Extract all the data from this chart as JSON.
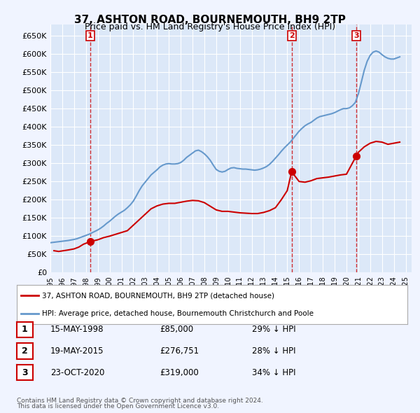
{
  "title": "37, ASHTON ROAD, BOURNEMOUTH, BH9 2TP",
  "subtitle": "Price paid vs. HM Land Registry's House Price Index (HPI)",
  "background_color": "#f0f4ff",
  "plot_bg_color": "#dce8f8",
  "grid_color": "#ffffff",
  "ylim": [
    0,
    680000
  ],
  "yticks": [
    0,
    50000,
    100000,
    150000,
    200000,
    250000,
    300000,
    350000,
    400000,
    450000,
    500000,
    550000,
    600000,
    650000
  ],
  "ytick_labels": [
    "£0",
    "£50K",
    "£100K",
    "£150K",
    "£200K",
    "£250K",
    "£300K",
    "£350K",
    "£400K",
    "£450K",
    "£500K",
    "£550K",
    "£600K",
    "£650K"
  ],
  "xlim_start": 1995.0,
  "xlim_end": 2025.5,
  "purchases": [
    {
      "date_num": 1998.37,
      "price": 85000,
      "label": "1"
    },
    {
      "date_num": 2015.37,
      "price": 276751,
      "label": "2"
    },
    {
      "date_num": 2020.81,
      "price": 319000,
      "label": "3"
    }
  ],
  "purchase_line_dates": [
    1998.37,
    2015.37,
    2020.81
  ],
  "legend_line1": "37, ASHTON ROAD, BOURNEMOUTH, BH9 2TP (detached house)",
  "legend_line2": "HPI: Average price, detached house, Bournemouth Christchurch and Poole",
  "table_rows": [
    {
      "num": "1",
      "date": "15-MAY-1998",
      "price": "£85,000",
      "hpi": "29% ↓ HPI"
    },
    {
      "num": "2",
      "date": "19-MAY-2015",
      "price": "£276,751",
      "hpi": "28% ↓ HPI"
    },
    {
      "num": "3",
      "date": "23-OCT-2020",
      "price": "£319,000",
      "hpi": "34% ↓ HPI"
    }
  ],
  "footnote1": "Contains HM Land Registry data © Crown copyright and database right 2024.",
  "footnote2": "This data is licensed under the Open Government Licence v3.0.",
  "red_line_color": "#cc0000",
  "blue_line_color": "#6699cc",
  "purchase_marker_color": "#cc0000",
  "hpi_data_x": [
    1995.0,
    1995.25,
    1995.5,
    1995.75,
    1996.0,
    1996.25,
    1996.5,
    1996.75,
    1997.0,
    1997.25,
    1997.5,
    1997.75,
    1998.0,
    1998.25,
    1998.5,
    1998.75,
    1999.0,
    1999.25,
    1999.5,
    1999.75,
    2000.0,
    2000.25,
    2000.5,
    2000.75,
    2001.0,
    2001.25,
    2001.5,
    2001.75,
    2002.0,
    2002.25,
    2002.5,
    2002.75,
    2003.0,
    2003.25,
    2003.5,
    2003.75,
    2004.0,
    2004.25,
    2004.5,
    2004.75,
    2005.0,
    2005.25,
    2005.5,
    2005.75,
    2006.0,
    2006.25,
    2006.5,
    2006.75,
    2007.0,
    2007.25,
    2007.5,
    2007.75,
    2008.0,
    2008.25,
    2008.5,
    2008.75,
    2009.0,
    2009.25,
    2009.5,
    2009.75,
    2010.0,
    2010.25,
    2010.5,
    2010.75,
    2011.0,
    2011.25,
    2011.5,
    2011.75,
    2012.0,
    2012.25,
    2012.5,
    2012.75,
    2013.0,
    2013.25,
    2013.5,
    2013.75,
    2014.0,
    2014.25,
    2014.5,
    2014.75,
    2015.0,
    2015.25,
    2015.5,
    2015.75,
    2016.0,
    2016.25,
    2016.5,
    2016.75,
    2017.0,
    2017.25,
    2017.5,
    2017.75,
    2018.0,
    2018.25,
    2018.5,
    2018.75,
    2019.0,
    2019.25,
    2019.5,
    2019.75,
    2020.0,
    2020.25,
    2020.5,
    2020.75,
    2021.0,
    2021.25,
    2021.5,
    2021.75,
    2022.0,
    2022.25,
    2022.5,
    2022.75,
    2023.0,
    2023.25,
    2023.5,
    2023.75,
    2024.0,
    2024.25,
    2024.5
  ],
  "hpi_data_y": [
    82000,
    83000,
    84000,
    85000,
    86000,
    87000,
    88000,
    89500,
    91000,
    93000,
    96000,
    99000,
    102000,
    105000,
    109000,
    113000,
    117000,
    122000,
    128000,
    135000,
    141000,
    148000,
    155000,
    161000,
    166000,
    171000,
    178000,
    186000,
    196000,
    210000,
    225000,
    238000,
    248000,
    258000,
    268000,
    275000,
    282000,
    290000,
    295000,
    298000,
    299000,
    298000,
    298000,
    299000,
    302000,
    308000,
    316000,
    322000,
    328000,
    334000,
    336000,
    332000,
    326000,
    318000,
    308000,
    295000,
    283000,
    278000,
    276000,
    278000,
    283000,
    287000,
    288000,
    286000,
    285000,
    284000,
    284000,
    283000,
    282000,
    281000,
    282000,
    284000,
    287000,
    291000,
    297000,
    305000,
    314000,
    323000,
    333000,
    342000,
    350000,
    358000,
    368000,
    378000,
    388000,
    396000,
    403000,
    408000,
    412000,
    418000,
    424000,
    428000,
    430000,
    432000,
    434000,
    436000,
    439000,
    443000,
    447000,
    450000,
    450000,
    452000,
    458000,
    467000,
    490000,
    522000,
    555000,
    580000,
    596000,
    605000,
    608000,
    605000,
    598000,
    592000,
    588000,
    586000,
    586000,
    589000,
    592000
  ],
  "price_paid_x": [
    1995.3,
    1995.7,
    1996.1,
    1996.5,
    1997.0,
    1997.4,
    1997.8,
    1998.37,
    1999.0,
    1999.5,
    2000.0,
    2000.5,
    2001.0,
    2001.5,
    2002.0,
    2002.5,
    2003.0,
    2003.5,
    2004.0,
    2004.5,
    2005.0,
    2005.5,
    2006.0,
    2006.5,
    2007.0,
    2007.5,
    2008.0,
    2008.5,
    2009.0,
    2009.5,
    2010.0,
    2010.5,
    2011.0,
    2011.5,
    2012.0,
    2012.5,
    2013.0,
    2013.5,
    2014.0,
    2014.5,
    2015.0,
    2015.37,
    2016.0,
    2016.5,
    2017.0,
    2017.5,
    2018.0,
    2018.5,
    2019.0,
    2019.5,
    2020.0,
    2020.81,
    2021.0,
    2021.5,
    2022.0,
    2022.5,
    2023.0,
    2023.5,
    2024.0,
    2024.5
  ],
  "price_paid_y": [
    60000,
    58000,
    60000,
    62000,
    65000,
    70000,
    78000,
    85000,
    90000,
    96000,
    100000,
    105000,
    110000,
    115000,
    130000,
    145000,
    160000,
    175000,
    183000,
    188000,
    190000,
    190000,
    193000,
    196000,
    198000,
    197000,
    192000,
    182000,
    172000,
    168000,
    168000,
    166000,
    164000,
    163000,
    162000,
    162000,
    165000,
    170000,
    178000,
    200000,
    225000,
    276751,
    250000,
    248000,
    252000,
    258000,
    260000,
    262000,
    265000,
    268000,
    270000,
    319000,
    330000,
    345000,
    355000,
    360000,
    358000,
    352000,
    355000,
    358000
  ]
}
